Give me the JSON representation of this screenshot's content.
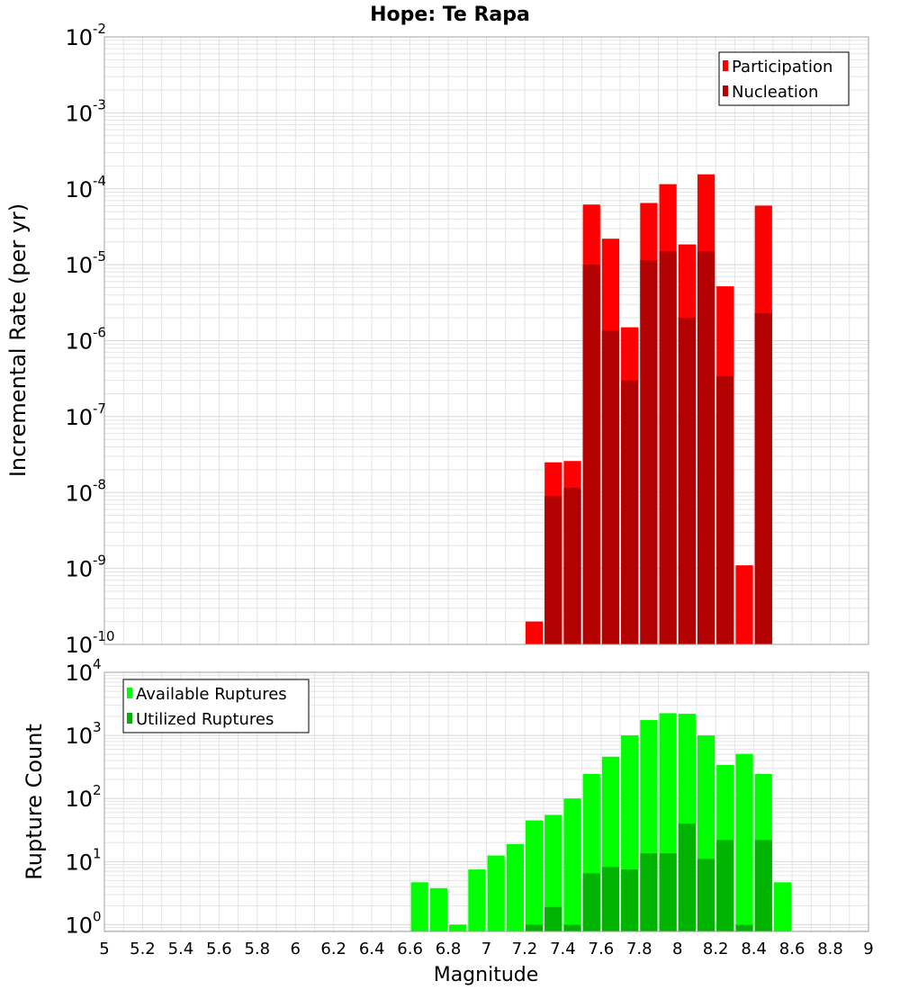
{
  "title": "Hope: Te Rapa",
  "colors": {
    "participation": "#ff0000",
    "nucleation": "#b30000",
    "available": "#00ff00",
    "utilized": "#00b300",
    "grid": "#e4e4e4",
    "frame": "#a0a0a0"
  },
  "chart_data": [
    {
      "type": "bar",
      "scale": "log",
      "title": "Hope: Te Rapa",
      "xlabel": "Magnitude",
      "ylabel": "Incremental Rate (per yr)",
      "xlim": [
        5,
        9
      ],
      "ylim": [
        1e-10,
        0.01
      ],
      "y_ticks": [
        {
          "base": "10",
          "exp": "-10"
        },
        {
          "base": "10",
          "exp": "-9"
        },
        {
          "base": "10",
          "exp": "-8"
        },
        {
          "base": "10",
          "exp": "-7"
        },
        {
          "base": "10",
          "exp": "-6"
        },
        {
          "base": "10",
          "exp": "-5"
        },
        {
          "base": "10",
          "exp": "-4"
        },
        {
          "base": "10",
          "exp": "-3"
        },
        {
          "base": "10",
          "exp": "-2"
        }
      ],
      "legend": {
        "position": "top-right",
        "entries": [
          "Participation",
          "Nucleation"
        ]
      },
      "grid": true,
      "x": [
        7.25,
        7.35,
        7.45,
        7.55,
        7.65,
        7.75,
        7.85,
        7.95,
        8.05,
        8.15,
        8.25,
        8.35,
        8.45
      ],
      "series": [
        {
          "name": "Participation",
          "values": [
            2e-10,
            2.5e-08,
            2.6e-08,
            6.2e-05,
            2.2e-05,
            1.5e-06,
            6.5e-05,
            0.000115,
            1.85e-05,
            0.000155,
            5.2e-06,
            1.1e-09,
            6e-05
          ]
        },
        {
          "name": "Nucleation",
          "values": [
            null,
            9e-09,
            1.15e-08,
            1e-05,
            1.35e-06,
            3e-07,
            1.15e-05,
            1.5e-05,
            2e-06,
            1.5e-05,
            3.4e-07,
            null,
            2.3e-06
          ]
        }
      ]
    },
    {
      "type": "bar",
      "scale": "log",
      "xlabel": "Magnitude",
      "ylabel": "Rupture Count",
      "xlim": [
        5,
        9
      ],
      "ylim": [
        0.78,
        10000
      ],
      "x_ticks": [
        "5",
        "5.2",
        "5.4",
        "5.6",
        "5.8",
        "6",
        "6.2",
        "6.4",
        "6.6",
        "6.8",
        "7",
        "7.2",
        "7.4",
        "7.6",
        "7.8",
        "8",
        "8.2",
        "8.4",
        "8.6",
        "8.8",
        "9"
      ],
      "y_ticks": [
        {
          "base": "10",
          "exp": "0"
        },
        {
          "base": "10",
          "exp": "1"
        },
        {
          "base": "10",
          "exp": "2"
        },
        {
          "base": "10",
          "exp": "3"
        },
        {
          "base": "10",
          "exp": "4"
        }
      ],
      "legend": {
        "position": "top-left",
        "entries": [
          "Available Ruptures",
          "Utilized Ruptures"
        ]
      },
      "grid": true,
      "x": [
        6.65,
        6.75,
        6.85,
        6.95,
        7.05,
        7.15,
        7.25,
        7.35,
        7.45,
        7.55,
        7.65,
        7.75,
        7.85,
        7.95,
        8.05,
        8.15,
        8.25,
        8.35,
        8.45,
        8.55
      ],
      "series": [
        {
          "name": "Available Ruptures",
          "values": [
            4.7,
            3.8,
            1,
            7.5,
            12.5,
            19,
            45,
            55,
            100,
            245,
            460,
            1000,
            1750,
            2250,
            2200,
            1000,
            340,
            510,
            245,
            4.7
          ]
        },
        {
          "name": "Utilized Ruptures",
          "values": [
            null,
            null,
            null,
            null,
            null,
            null,
            1,
            1.9,
            1,
            6.5,
            8.2,
            7.5,
            13.5,
            13.5,
            40,
            11,
            22,
            1,
            22,
            null
          ]
        }
      ]
    }
  ]
}
